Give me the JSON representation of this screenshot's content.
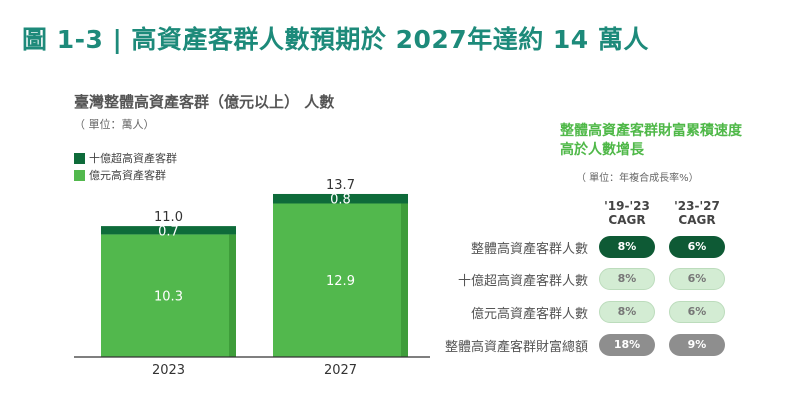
{
  "header": {
    "title": "圖 1-3 | 高資產客群人數預期於 2027年達約 14 萬人"
  },
  "chart_data": {
    "type": "bar",
    "stacked": true,
    "title": "臺灣整體高資產客群（億元以上） 人數",
    "unit": "（ 單位：萬人）",
    "categories": [
      "2023",
      "2027"
    ],
    "series": [
      {
        "name": "十億超高資產客群",
        "color": "#0e6b3a",
        "values": [
          0.7,
          0.8
        ]
      },
      {
        "name": "億元高資產客群",
        "color": "#52b84d",
        "values": [
          10.3,
          12.9
        ]
      }
    ],
    "totals": [
      "11.0",
      "13.7"
    ],
    "segment_labels": {
      "top": [
        "0.7",
        "0.8"
      ],
      "bottom": [
        "10.3",
        "12.9"
      ]
    },
    "ylim": [
      0,
      16
    ]
  },
  "growth_panel": {
    "title_line1": "整體高資產客群財富累積速度",
    "title_line2": "高於人數增長",
    "unit": "（ 單位：年複合成長率%）",
    "columns": [
      {
        "line1": "'19-'23",
        "line2": "CAGR"
      },
      {
        "line1": "'23-'27",
        "line2": "CAGR"
      }
    ],
    "rows": [
      {
        "label": "整體高資產客群人數",
        "values": [
          "8%",
          "6%"
        ],
        "style": "dark"
      },
      {
        "label": "十億超高資產客群人數",
        "values": [
          "8%",
          "6%"
        ],
        "style": "light"
      },
      {
        "label": "億元高資產客群人數",
        "values": [
          "8%",
          "6%"
        ],
        "style": "light"
      },
      {
        "label": "整體高資產客群財富總額",
        "values": [
          "18%",
          "9%"
        ],
        "style": "gray"
      }
    ]
  },
  "colors": {
    "title": "#1d8a7a",
    "dark_green": "#0e6b3a",
    "light_green": "#52b84d",
    "bar_shadow": "#3e9d3a",
    "right_title": "#4fb848"
  }
}
